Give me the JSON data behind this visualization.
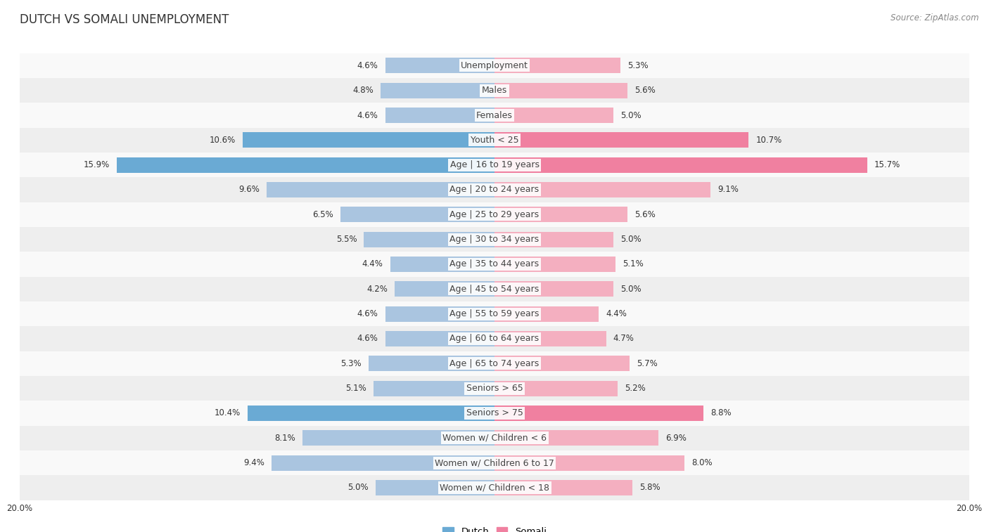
{
  "title": "DUTCH VS SOMALI UNEMPLOYMENT",
  "source": "Source: ZipAtlas.com",
  "categories": [
    "Unemployment",
    "Males",
    "Females",
    "Youth < 25",
    "Age | 16 to 19 years",
    "Age | 20 to 24 years",
    "Age | 25 to 29 years",
    "Age | 30 to 34 years",
    "Age | 35 to 44 years",
    "Age | 45 to 54 years",
    "Age | 55 to 59 years",
    "Age | 60 to 64 years",
    "Age | 65 to 74 years",
    "Seniors > 65",
    "Seniors > 75",
    "Women w/ Children < 6",
    "Women w/ Children 6 to 17",
    "Women w/ Children < 18"
  ],
  "dutch_values": [
    4.6,
    4.8,
    4.6,
    10.6,
    15.9,
    9.6,
    6.5,
    5.5,
    4.4,
    4.2,
    4.6,
    4.6,
    5.3,
    5.1,
    10.4,
    8.1,
    9.4,
    5.0
  ],
  "somali_values": [
    5.3,
    5.6,
    5.0,
    10.7,
    15.7,
    9.1,
    5.6,
    5.0,
    5.1,
    5.0,
    4.4,
    4.7,
    5.7,
    5.2,
    8.8,
    6.9,
    8.0,
    5.8
  ],
  "dutch_color": "#aac5e0",
  "somali_color": "#f4afc0",
  "dutch_highlight_color": "#6aaad4",
  "somali_highlight_color": "#f080a0",
  "axis_max": 20.0,
  "bar_height": 0.62,
  "row_bg_light": "#f9f9f9",
  "row_bg_dark": "#eeeeee",
  "label_fontsize": 9.0,
  "title_fontsize": 12,
  "source_fontsize": 8.5,
  "value_fontsize": 8.5
}
